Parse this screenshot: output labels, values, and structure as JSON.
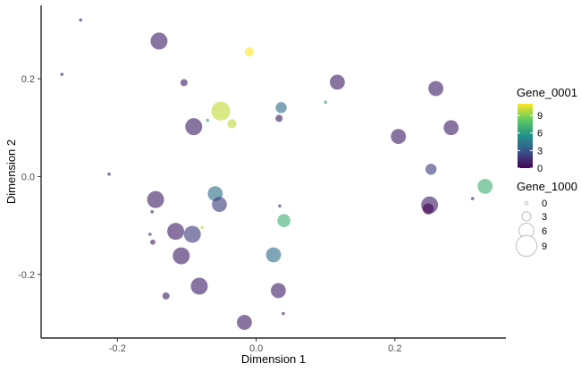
{
  "chart_data": {
    "type": "scatter",
    "title": "",
    "xlabel": "Dimension 1",
    "ylabel": "Dimension 2",
    "xlim": [
      -0.31,
      0.36
    ],
    "ylim": [
      -0.33,
      0.35
    ],
    "x_ticks": [
      -0.2,
      0.0,
      0.2
    ],
    "x_tick_labels": [
      "-0.2",
      "0.0",
      "0.2"
    ],
    "y_ticks": [
      -0.2,
      0.0,
      0.2
    ],
    "y_tick_labels": [
      "-0.2",
      "0.0",
      "0.2"
    ],
    "grid": false,
    "legend_position": "right",
    "color_legend": {
      "title": "Gene_0001",
      "ticks": [
        0,
        3,
        6,
        9
      ],
      "tick_labels": [
        "0",
        "3",
        "6",
        "9"
      ],
      "range": [
        0,
        11
      ]
    },
    "size_legend": {
      "title": "Gene_1000",
      "values": [
        0,
        3,
        6,
        9
      ],
      "labels": [
        "0",
        "3",
        "6",
        "9"
      ]
    },
    "colors": {
      "viridis": [
        "#440154",
        "#3b528b",
        "#21918c",
        "#5ec962",
        "#fde725"
      ],
      "axis": "#000000",
      "tick_text": "#4d4d4d"
    },
    "points": [
      {
        "x": -0.253,
        "y": 0.32,
        "color": 1,
        "size": 0
      },
      {
        "x": -0.28,
        "y": 0.209,
        "color": 1,
        "size": 0
      },
      {
        "x": -0.14,
        "y": 0.277,
        "color": 1,
        "size": 7
      },
      {
        "x": -0.104,
        "y": 0.192,
        "color": 1,
        "size": 2
      },
      {
        "x": -0.01,
        "y": 0.255,
        "color": 11,
        "size": 3
      },
      {
        "x": 0.117,
        "y": 0.193,
        "color": 1,
        "size": 6
      },
      {
        "x": 0.259,
        "y": 0.18,
        "color": 1,
        "size": 6
      },
      {
        "x": 0.1,
        "y": 0.152,
        "color": 6,
        "size": 0
      },
      {
        "x": 0.036,
        "y": 0.141,
        "color": 4,
        "size": 4
      },
      {
        "x": 0.033,
        "y": 0.119,
        "color": 1,
        "size": 2
      },
      {
        "x": -0.051,
        "y": 0.134,
        "color": 10,
        "size": 8
      },
      {
        "x": -0.07,
        "y": 0.115,
        "color": 6,
        "size": 0
      },
      {
        "x": -0.035,
        "y": 0.108,
        "color": 10,
        "size": 3
      },
      {
        "x": -0.09,
        "y": 0.102,
        "color": 1,
        "size": 7
      },
      {
        "x": 0.205,
        "y": 0.082,
        "color": 1,
        "size": 6
      },
      {
        "x": 0.281,
        "y": 0.1,
        "color": 1,
        "size": 6
      },
      {
        "x": 0.252,
        "y": 0.015,
        "color": 2,
        "size": 4
      },
      {
        "x": 0.33,
        "y": -0.02,
        "color": 7,
        "size": 6
      },
      {
        "x": -0.212,
        "y": 0.005,
        "color": 1,
        "size": 0
      },
      {
        "x": -0.059,
        "y": -0.035,
        "color": 4,
        "size": 6
      },
      {
        "x": -0.145,
        "y": -0.047,
        "color": 1,
        "size": 7
      },
      {
        "x": -0.053,
        "y": -0.057,
        "color": 2,
        "size": 6
      },
      {
        "x": 0.034,
        "y": -0.06,
        "color": 1,
        "size": 0
      },
      {
        "x": 0.04,
        "y": -0.09,
        "color": 7,
        "size": 5
      },
      {
        "x": -0.15,
        "y": -0.072,
        "color": 1,
        "size": 0
      },
      {
        "x": 0.25,
        "y": -0.058,
        "color": 1,
        "size": 7
      },
      {
        "x": 0.248,
        "y": -0.066,
        "color": 0,
        "size": 4
      },
      {
        "x": 0.312,
        "y": -0.045,
        "color": 1,
        "size": 0
      },
      {
        "x": -0.116,
        "y": -0.112,
        "color": 1,
        "size": 7
      },
      {
        "x": -0.092,
        "y": -0.118,
        "color": 2,
        "size": 7
      },
      {
        "x": -0.078,
        "y": -0.104,
        "color": 10,
        "size": 0
      },
      {
        "x": -0.153,
        "y": -0.118,
        "color": 1,
        "size": 0
      },
      {
        "x": -0.149,
        "y": -0.134,
        "color": 1,
        "size": 1
      },
      {
        "x": -0.108,
        "y": -0.162,
        "color": 1,
        "size": 7
      },
      {
        "x": 0.025,
        "y": -0.16,
        "color": 4,
        "size": 6
      },
      {
        "x": -0.082,
        "y": -0.224,
        "color": 1,
        "size": 7
      },
      {
        "x": 0.032,
        "y": -0.233,
        "color": 1,
        "size": 6
      },
      {
        "x": -0.13,
        "y": -0.244,
        "color": 1,
        "size": 2
      },
      {
        "x": 0.039,
        "y": -0.28,
        "color": 1,
        "size": 0
      },
      {
        "x": -0.017,
        "y": -0.298,
        "color": 1,
        "size": 6
      }
    ]
  }
}
